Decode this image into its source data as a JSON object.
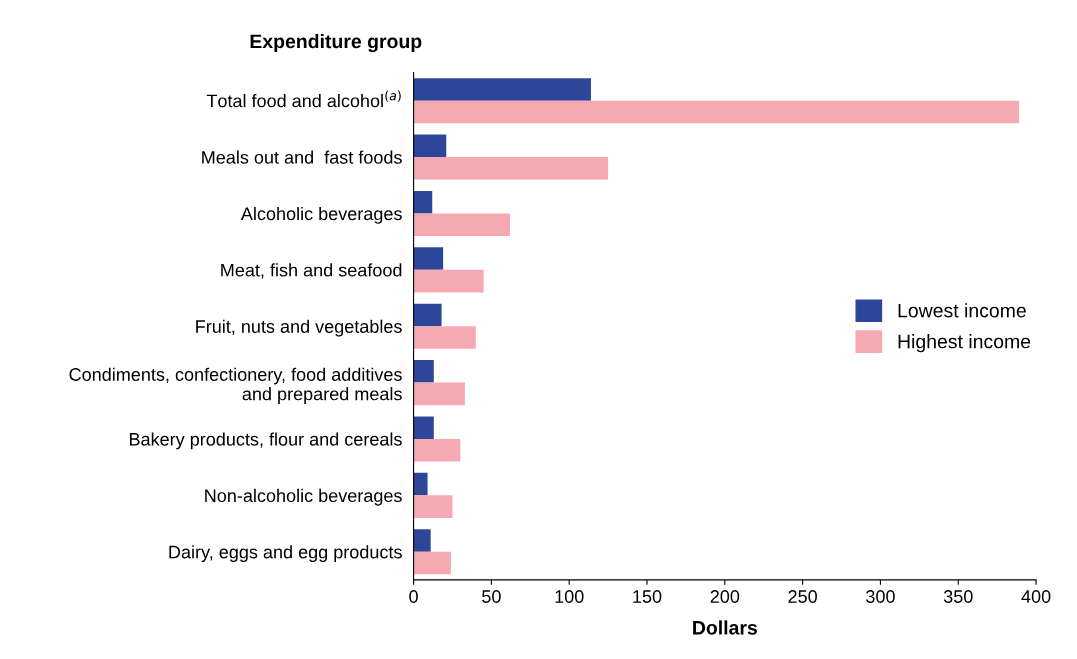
{
  "chart_data": {
    "type": "bar",
    "orientation": "horizontal",
    "ylabel": "Expenditure group",
    "xlabel": "Dollars",
    "categories": [
      "Total food and alcohol$^{(a)}$",
      "Meals out and  fast foods",
      "Alcoholic beverages",
      "Meat, fish and seafood",
      "Fruit, nuts and vegetables",
      "Condiments, confectionery, food additives\nand prepared meals",
      "Bakery products, flour and cereals",
      "Non-alcoholic beverages",
      "Dairy, eggs and egg products"
    ],
    "series": [
      {
        "name": "Lowest income",
        "color": "#2e4698",
        "values": [
          114,
          21,
          12,
          19,
          18,
          13,
          13,
          9,
          11
        ]
      },
      {
        "name": "Highest income",
        "color": "#f5a9b2",
        "values": [
          389,
          125,
          62,
          45,
          40,
          33,
          30,
          25,
          24
        ]
      }
    ],
    "xlim": [
      0,
      400
    ],
    "xticks": [
      0,
      50,
      100,
      150,
      200,
      250,
      300,
      350,
      400
    ],
    "grid": false,
    "legend": "right"
  }
}
